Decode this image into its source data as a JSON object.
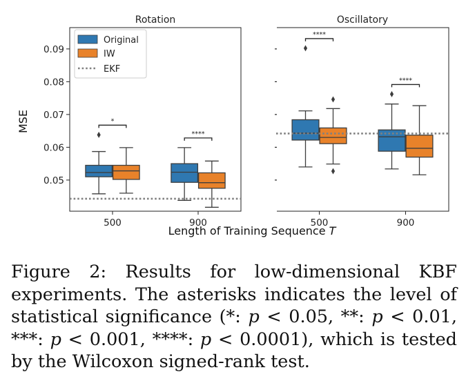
{
  "figure": {
    "xlabel": "Length of Training Sequence",
    "xlabel_var": "T",
    "ylabel": "MSE"
  },
  "legend": {
    "original": "Original",
    "iw": "IW",
    "ekf": "EKF"
  },
  "colors": {
    "original": "#2f78b1",
    "iw": "#e8822a",
    "ekf": "#808080"
  },
  "chart_data": [
    {
      "type": "box",
      "title": "Rotation",
      "xlabel": "Length of Training Sequence T",
      "ylabel": "MSE",
      "ylim": [
        0.0405,
        0.0965
      ],
      "yticks": [
        0.05,
        0.06,
        0.07,
        0.08,
        0.09
      ],
      "ytick_labels": [
        "0.05",
        "0.06",
        "0.07",
        "0.08",
        "0.09"
      ],
      "categories": [
        "500",
        "900"
      ],
      "ekf_value": 0.0443,
      "series": [
        {
          "name": "Original",
          "boxes": [
            {
              "whislo": 0.0458,
              "q1": 0.051,
              "med": 0.0523,
              "q3": 0.0545,
              "whishi": 0.0587,
              "fliers": [
                0.0638
              ]
            },
            {
              "whislo": 0.0438,
              "q1": 0.0493,
              "med": 0.0524,
              "q3": 0.055,
              "whishi": 0.0599,
              "fliers": []
            }
          ]
        },
        {
          "name": "IW",
          "boxes": [
            {
              "whislo": 0.046,
              "q1": 0.0502,
              "med": 0.0528,
              "q3": 0.0545,
              "whishi": 0.0599,
              "fliers": []
            },
            {
              "whislo": 0.0417,
              "q1": 0.0475,
              "med": 0.0492,
              "q3": 0.0522,
              "whishi": 0.0558,
              "fliers": []
            }
          ]
        }
      ],
      "significance": [
        "*",
        "****"
      ]
    },
    {
      "type": "box",
      "title": "Oscillatory",
      "xlabel": "Length of Training Sequence T",
      "ylabel": "MSE",
      "ylim": [
        0.0405,
        0.0965
      ],
      "categories": [
        "500",
        "900"
      ],
      "ekf_value": 0.0642,
      "series": [
        {
          "name": "Original",
          "boxes": [
            {
              "whislo": 0.054,
              "q1": 0.0622,
              "med": 0.0643,
              "q3": 0.0684,
              "whishi": 0.0711,
              "fliers": [
                0.0902
              ]
            },
            {
              "whislo": 0.0534,
              "q1": 0.0588,
              "med": 0.0632,
              "q3": 0.0653,
              "whishi": 0.0732,
              "fliers": [
                0.0762
              ]
            }
          ]
        },
        {
          "name": "IW",
          "boxes": [
            {
              "whislo": 0.0549,
              "q1": 0.0611,
              "med": 0.063,
              "q3": 0.0659,
              "whishi": 0.0718,
              "fliers": [
                0.0746,
                0.0527
              ]
            },
            {
              "whislo": 0.0516,
              "q1": 0.057,
              "med": 0.0597,
              "q3": 0.0637,
              "whishi": 0.0727,
              "fliers": []
            }
          ]
        }
      ],
      "significance": [
        "****",
        "****"
      ]
    }
  ],
  "caption": {
    "label": "Figure 2:",
    "text_1": " Results for low-dimensional KBF experiments. The asterisks indicates the level of statistical significance (*: ",
    "p1": "p",
    "t1": " < 0.05, **: ",
    "p2": "p",
    "t2": " < 0.01, ***: ",
    "p3": "p",
    "t3": " < 0.001, ****: ",
    "p4": "p",
    "t4": " < 0.0001), which is tested by the Wilcoxon signed-rank test."
  }
}
